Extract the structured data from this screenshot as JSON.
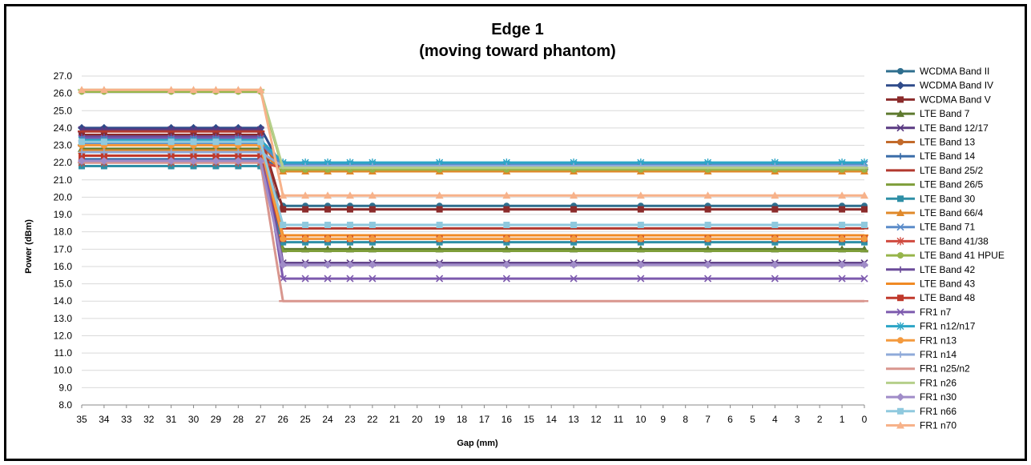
{
  "chart_data": {
    "type": "line",
    "title": "Edge 1",
    "subtitle": "(moving toward phantom)",
    "xlabel": "Gap (mm)",
    "ylabel": "Power (dBm)",
    "ylim": [
      8.0,
      27.0
    ],
    "ytick_step": 1.0,
    "x_axis": [
      35,
      34,
      33,
      32,
      31,
      30,
      29,
      28,
      27,
      26,
      25,
      24,
      23,
      22,
      21,
      20,
      19,
      18,
      17,
      16,
      15,
      14,
      13,
      12,
      11,
      10,
      9,
      8,
      7,
      6,
      5,
      4,
      3,
      2,
      1,
      0
    ],
    "marker_gaps": [
      35,
      34,
      31,
      30,
      29,
      28,
      27,
      26,
      25,
      24,
      23,
      22,
      19,
      16,
      13,
      10,
      7,
      4,
      1,
      0
    ],
    "grid": "horizontal",
    "legend_position": "right",
    "series": [
      {
        "name": "WCDMA Band II",
        "color": "#2E6E8E",
        "marker": "circle",
        "values": [
          21.8,
          19.5
        ]
      },
      {
        "name": "WCDMA Band IV",
        "color": "#2F4B8A",
        "marker": "diamond",
        "values": [
          24.0,
          21.6
        ]
      },
      {
        "name": "WCDMA Band V",
        "color": "#8B2B2B",
        "marker": "square",
        "values": [
          23.6,
          19.3
        ]
      },
      {
        "name": "LTE Band 7",
        "color": "#5E7A2F",
        "marker": "triangle",
        "values": [
          22.8,
          17.0
        ]
      },
      {
        "name": "LTE Band 12/17",
        "color": "#5A3A82",
        "marker": "x",
        "values": [
          23.9,
          16.2
        ]
      },
      {
        "name": "LTE Band 13",
        "color": "#C26A2B",
        "marker": "circle",
        "values": [
          23.2,
          21.5
        ]
      },
      {
        "name": "LTE Band 14",
        "color": "#3A6DA8",
        "marker": "plus",
        "values": [
          22.2,
          21.7
        ]
      },
      {
        "name": "LTE Band 25/2",
        "color": "#B2392F",
        "marker": "dash",
        "values": [
          23.8,
          18.2
        ]
      },
      {
        "name": "LTE Band 26/5",
        "color": "#7E9E3A",
        "marker": "dash",
        "values": [
          23.0,
          16.9
        ]
      },
      {
        "name": "LTE Band 30",
        "color": "#2F8FA6",
        "marker": "square",
        "values": [
          21.8,
          17.4
        ]
      },
      {
        "name": "LTE Band 66/4",
        "color": "#E0892A",
        "marker": "triangle",
        "values": [
          22.7,
          21.5
        ]
      },
      {
        "name": "LTE Band 71",
        "color": "#5B8CC9",
        "marker": "x",
        "values": [
          23.1,
          21.9
        ]
      },
      {
        "name": "LTE Band 41/38",
        "color": "#D04A3F",
        "marker": "asterisk",
        "values": [
          22.0,
          21.7
        ]
      },
      {
        "name": "LTE Band 41 HPUE",
        "color": "#96B54A",
        "marker": "circle",
        "values": [
          26.1,
          21.6
        ]
      },
      {
        "name": "LTE Band 42",
        "color": "#6B4C9A",
        "marker": "plus",
        "values": [
          23.5,
          16.1
        ]
      },
      {
        "name": "LTE Band 43",
        "color": "#F08A24",
        "marker": "dash",
        "values": [
          23.0,
          17.8
        ]
      },
      {
        "name": "LTE Band 48",
        "color": "#C0392B",
        "marker": "square",
        "values": [
          22.4,
          17.6
        ]
      },
      {
        "name": "FR1 n7",
        "color": "#7D5AAE",
        "marker": "x",
        "values": [
          23.4,
          15.3
        ]
      },
      {
        "name": "FR1 n12/n17",
        "color": "#2BA5C6",
        "marker": "asterisk",
        "values": [
          23.3,
          22.0
        ]
      },
      {
        "name": "FR1 n13",
        "color": "#F49A3E",
        "marker": "circle",
        "values": [
          23.0,
          17.6
        ]
      },
      {
        "name": "FR1 n14",
        "color": "#8FAAD9",
        "marker": "plus",
        "values": [
          22.6,
          21.8
        ]
      },
      {
        "name": "FR1 n25/n2",
        "color": "#D9968E",
        "marker": "dash",
        "values": [
          22.0,
          14.0
        ]
      },
      {
        "name": "FR1 n26",
        "color": "#B5CF8A",
        "marker": "dash",
        "values": [
          26.2,
          21.7
        ]
      },
      {
        "name": "FR1 n30",
        "color": "#A08CC8",
        "marker": "diamond",
        "values": [
          22.1,
          16.1
        ]
      },
      {
        "name": "FR1 n66",
        "color": "#8FC9DE",
        "marker": "square",
        "values": [
          23.2,
          18.4
        ]
      },
      {
        "name": "FR1 n70",
        "color": "#F7B28A",
        "marker": "triangle",
        "values": [
          26.2,
          20.1
        ]
      }
    ]
  }
}
